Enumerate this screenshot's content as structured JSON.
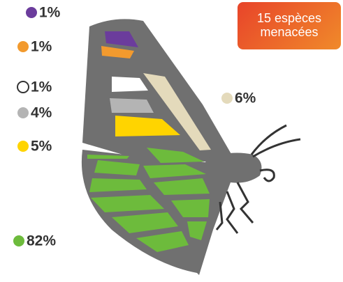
{
  "chart_data": {
    "type": "pictogram",
    "title": "15 espèces menacées",
    "values": [
      1,
      1,
      1,
      4,
      5,
      6,
      82
    ],
    "value_labels": [
      "1%",
      "1%",
      "1%",
      "4%",
      "5%",
      "6%",
      "82%"
    ],
    "colors": [
      "#6b3c9c",
      "#f29a2e",
      "#ffffff",
      "#b4b4b4",
      "#ffd400",
      "#e4dabb",
      "#6dbb3c"
    ]
  }
}
